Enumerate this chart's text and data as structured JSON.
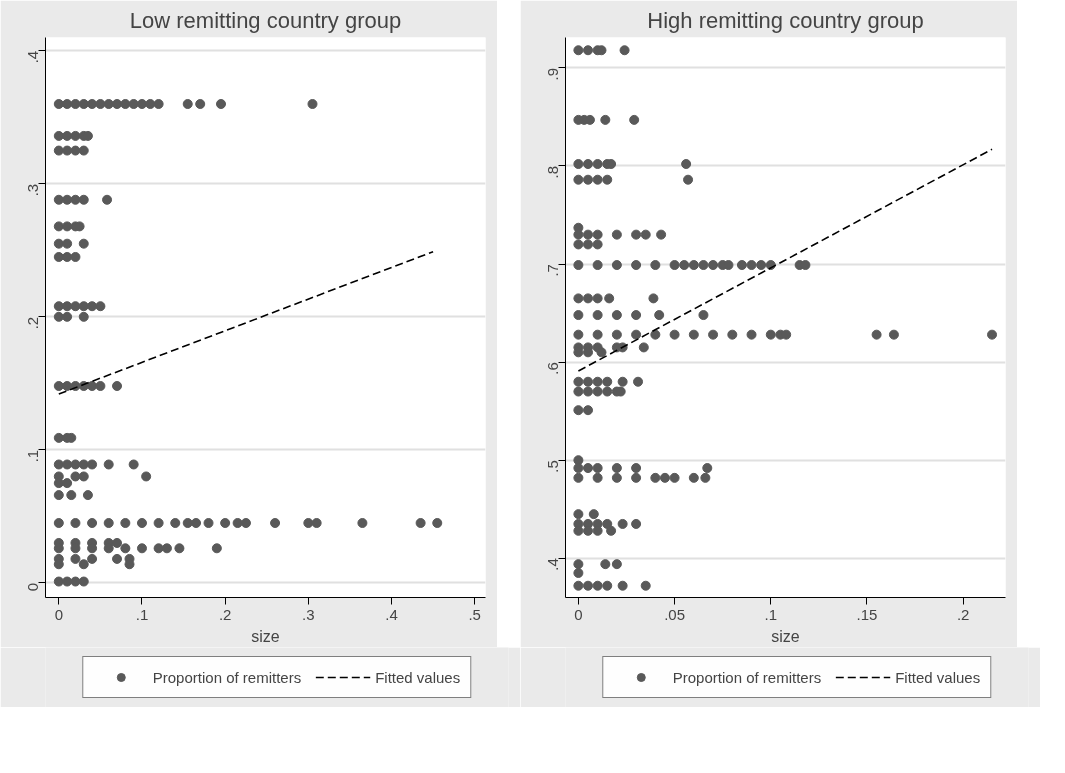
{
  "chart_data": [
    {
      "type": "scatter",
      "title": "Low remitting country group",
      "xlabel": "size",
      "xlim": [
        -0.016,
        0.513
      ],
      "ylim": [
        -0.011,
        0.41
      ],
      "xticks": [
        0,
        {
          "value": 0.1,
          "label": ".1"
        },
        {
          "value": 0.2,
          "label": ".2"
        },
        {
          "value": 0.3,
          "label": ".3"
        },
        {
          "value": 0.4,
          "label": ".4"
        },
        {
          "value": 0.5,
          "label": ".5"
        }
      ],
      "yticks": [
        0,
        {
          "value": 0.1,
          "label": ".1"
        },
        {
          "value": 0.2,
          "label": ".2"
        },
        {
          "value": 0.3,
          "label": ".3"
        },
        {
          "value": 0.4,
          "label": ".4"
        }
      ],
      "grid": "y",
      "legend": "bottom",
      "series": [
        {
          "name": "Proportion of remitters",
          "marker": "circle",
          "color": "#595959",
          "x": [
            0,
            0.01,
            0.02,
            0.03,
            0.04,
            0.05,
            0.06,
            0.07,
            0.08,
            0.09,
            0.1,
            0.11,
            0.12,
            0.155,
            0.17,
            0.195,
            0.305,
            0,
            0.01,
            0.02,
            0.03,
            0.035,
            0,
            0.01,
            0.02,
            0.03,
            0,
            0.01,
            0.02,
            0.03,
            0.058,
            0,
            0.01,
            0.02,
            0.025,
            0,
            0.01,
            0.03,
            0,
            0.01,
            0.02,
            0,
            0.01,
            0.02,
            0.03,
            0.04,
            0.05,
            0,
            0.01,
            0.03,
            0,
            0.01,
            0.02,
            0.03,
            0.04,
            0.05,
            0.07,
            0,
            0.01,
            0.015,
            0,
            0.01,
            0.02,
            0.03,
            0.04,
            0.06,
            0.09,
            0,
            0.02,
            0.03,
            0.105,
            0,
            0.01,
            0,
            0.015,
            0.035,
            0,
            0.02,
            0.04,
            0.06,
            0.08,
            0.1,
            0.12,
            0.14,
            0.155,
            0.165,
            0.18,
            0.2,
            0.215,
            0.225,
            0.26,
            0.3,
            0.31,
            0.365,
            0.435,
            0.455,
            0,
            0.02,
            0.04,
            0.06,
            0.07,
            0,
            0.02,
            0.04,
            0.06,
            0.08,
            0.1,
            0.12,
            0.13,
            0.145,
            0.19,
            0,
            0.02,
            0.04,
            0.07,
            0.085,
            0,
            0.03,
            0.085,
            0,
            0.01,
            0.02,
            0.03
          ],
          "values": [
            0.36,
            0.36,
            0.36,
            0.36,
            0.36,
            0.36,
            0.36,
            0.36,
            0.36,
            0.36,
            0.36,
            0.36,
            0.36,
            0.36,
            0.36,
            0.36,
            0.36,
            0.336,
            0.336,
            0.336,
            0.336,
            0.336,
            0.325,
            0.325,
            0.325,
            0.325,
            0.288,
            0.288,
            0.288,
            0.288,
            0.288,
            0.268,
            0.268,
            0.268,
            0.268,
            0.255,
            0.255,
            0.255,
            0.245,
            0.245,
            0.245,
            0.208,
            0.208,
            0.208,
            0.208,
            0.208,
            0.208,
            0.2,
            0.2,
            0.2,
            0.148,
            0.148,
            0.148,
            0.148,
            0.148,
            0.148,
            0.148,
            0.109,
            0.109,
            0.109,
            0.089,
            0.089,
            0.089,
            0.089,
            0.089,
            0.089,
            0.089,
            0.08,
            0.08,
            0.08,
            0.08,
            0.075,
            0.075,
            0.066,
            0.066,
            0.066,
            0.045,
            0.045,
            0.045,
            0.045,
            0.045,
            0.045,
            0.045,
            0.045,
            0.045,
            0.045,
            0.045,
            0.045,
            0.045,
            0.045,
            0.045,
            0.045,
            0.045,
            0.045,
            0.045,
            0.045,
            0.03,
            0.03,
            0.03,
            0.03,
            0.03,
            0.026,
            0.026,
            0.026,
            0.026,
            0.026,
            0.026,
            0.026,
            0.026,
            0.026,
            0.026,
            0.018,
            0.018,
            0.018,
            0.018,
            0.018,
            0.014,
            0.014,
            0.014,
            0.001,
            0.001,
            0.001,
            0.001
          ]
        },
        {
          "name": "Fitted values",
          "type": "line",
          "color": "#000000",
          "line_style": "dashed",
          "x": [
            0,
            0.45
          ],
          "values": [
            0.142,
            0.249
          ]
        }
      ]
    },
    {
      "type": "scatter",
      "title": "High remitting country group",
      "xlabel": "size",
      "xlim": [
        -0.0067,
        0.222
      ],
      "ylim": [
        0.36,
        0.931
      ],
      "xticks": [
        0,
        {
          "value": 0.05,
          "label": ".05"
        },
        {
          "value": 0.1,
          "label": ".1"
        },
        {
          "value": 0.15,
          "label": ".15"
        },
        {
          "value": 0.2,
          "label": ".2"
        }
      ],
      "yticks": [
        {
          "value": 0.4,
          "label": ".4"
        },
        {
          "value": 0.5,
          "label": ".5"
        },
        {
          "value": 0.6,
          "label": ".6"
        },
        {
          "value": 0.7,
          "label": ".7"
        },
        {
          "value": 0.8,
          "label": ".8"
        },
        {
          "value": 0.9,
          "label": ".9"
        }
      ],
      "grid": "y",
      "legend": "bottom",
      "series": [
        {
          "name": "Proportion of remitters",
          "marker": "circle",
          "color": "#595959",
          "x": [
            0,
            0.005,
            0.01,
            0.012,
            0.024,
            0,
            0.003,
            0.006,
            0.014,
            0.029,
            0,
            0.005,
            0.01,
            0.015,
            0.017,
            0.056,
            0,
            0.005,
            0.01,
            0.015,
            0.057,
            0,
            0,
            0.005,
            0.01,
            0.02,
            0.03,
            0.035,
            0.043,
            0,
            0.005,
            0.01,
            0,
            0.01,
            0.02,
            0.03,
            0.04,
            0.05,
            0.055,
            0.06,
            0.065,
            0.07,
            0.075,
            0.078,
            0.085,
            0.09,
            0.095,
            0.1,
            0.115,
            0.118,
            0,
            0.005,
            0.01,
            0.016,
            0.039,
            0,
            0.01,
            0.02,
            0.03,
            0.042,
            0.065,
            0,
            0.01,
            0.02,
            0.03,
            0.04,
            0.05,
            0.06,
            0.07,
            0.08,
            0.09,
            0.1,
            0.105,
            0.108,
            0.155,
            0.164,
            0.215,
            0,
            0.005,
            0.01,
            0.02,
            0.023,
            0.034,
            0,
            0.005,
            0.012,
            0,
            0.005,
            0.01,
            0.015,
            0.023,
            0.031,
            0,
            0.005,
            0.01,
            0.015,
            0.02,
            0.022,
            0,
            0.005,
            0,
            0,
            0.005,
            0.01,
            0.02,
            0.03,
            0.067,
            0,
            0.01,
            0.02,
            0.03,
            0.04,
            0.045,
            0.05,
            0.06,
            0.066,
            0,
            0.008,
            0,
            0.005,
            0.01,
            0.015,
            0.023,
            0.03,
            0,
            0.005,
            0.01,
            0.017,
            0,
            0.014,
            0.02,
            0,
            0,
            0.005,
            0.01,
            0.015,
            0.023,
            0.035
          ],
          "values": [
            0.918,
            0.918,
            0.918,
            0.918,
            0.918,
            0.847,
            0.847,
            0.847,
            0.847,
            0.847,
            0.802,
            0.802,
            0.802,
            0.802,
            0.802,
            0.802,
            0.786,
            0.786,
            0.786,
            0.786,
            0.786,
            0.737,
            0.73,
            0.73,
            0.73,
            0.73,
            0.73,
            0.73,
            0.73,
            0.72,
            0.72,
            0.72,
            0.699,
            0.699,
            0.699,
            0.699,
            0.699,
            0.699,
            0.699,
            0.699,
            0.699,
            0.699,
            0.699,
            0.699,
            0.699,
            0.699,
            0.699,
            0.699,
            0.699,
            0.699,
            0.665,
            0.665,
            0.665,
            0.665,
            0.665,
            0.648,
            0.648,
            0.648,
            0.648,
            0.648,
            0.648,
            0.628,
            0.628,
            0.628,
            0.628,
            0.628,
            0.628,
            0.628,
            0.628,
            0.628,
            0.628,
            0.628,
            0.628,
            0.628,
            0.628,
            0.628,
            0.628,
            0.615,
            0.615,
            0.615,
            0.615,
            0.615,
            0.615,
            0.61,
            0.61,
            0.61,
            0.58,
            0.58,
            0.58,
            0.58,
            0.58,
            0.58,
            0.57,
            0.57,
            0.57,
            0.57,
            0.57,
            0.57,
            0.551,
            0.551,
            0.5,
            0.492,
            0.492,
            0.492,
            0.492,
            0.492,
            0.492,
            0.482,
            0.482,
            0.482,
            0.482,
            0.482,
            0.482,
            0.482,
            0.482,
            0.482,
            0.445,
            0.445,
            0.435,
            0.435,
            0.435,
            0.435,
            0.435,
            0.435,
            0.428,
            0.428,
            0.428,
            0.428,
            0.394,
            0.394,
            0.394,
            0.385,
            0.372,
            0.372,
            0.372,
            0.372,
            0.372,
            0.372
          ]
        },
        {
          "name": "Fitted values",
          "type": "line",
          "color": "#000000",
          "line_style": "dashed",
          "x": [
            0,
            0.215
          ],
          "values": [
            0.591,
            0.817
          ]
        }
      ]
    }
  ]
}
